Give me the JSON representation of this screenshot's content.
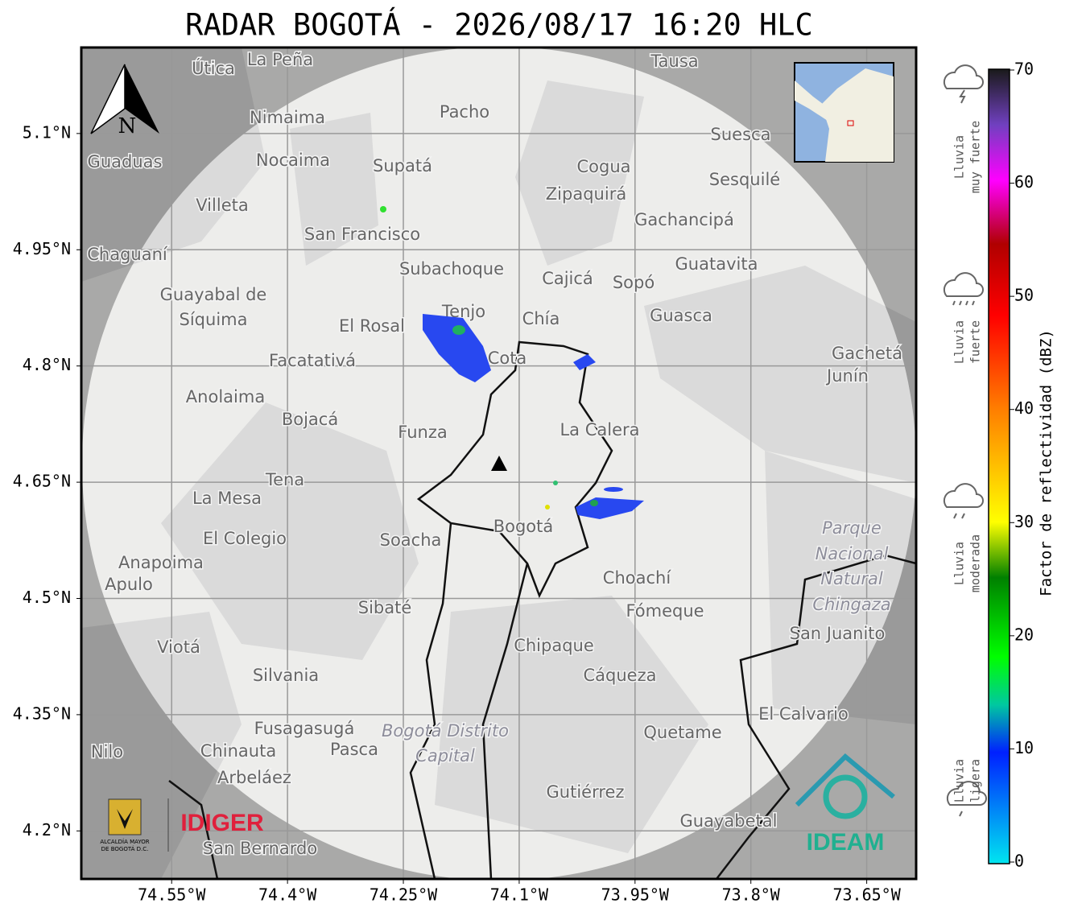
{
  "title": "RADAR BOGOTÁ - 2026/08/17 16:20 HLC",
  "map": {
    "xlim": [
      -74.667,
      -73.586
    ],
    "ylim": [
      4.138,
      5.211
    ],
    "grid": true,
    "xticks": [
      {
        "value": -74.55,
        "label": "74.55°W"
      },
      {
        "value": -74.4,
        "label": "74.4°W"
      },
      {
        "value": -74.25,
        "label": "74.25°W"
      },
      {
        "value": -74.1,
        "label": "74.1°W"
      },
      {
        "value": -73.95,
        "label": "73.95°W"
      },
      {
        "value": -73.8,
        "label": "73.8°W"
      },
      {
        "value": -73.65,
        "label": "73.65°W"
      }
    ],
    "yticks": [
      {
        "value": 5.1,
        "label": "5.1°N"
      },
      {
        "value": 4.95,
        "label": "4.95°N"
      },
      {
        "value": 4.8,
        "label": "4.8°N"
      },
      {
        "value": 4.65,
        "label": "4.65°N"
      },
      {
        "value": 4.5,
        "label": "4.5°N"
      },
      {
        "value": 4.35,
        "label": "4.35°N"
      },
      {
        "value": 4.2,
        "label": "4.2°N"
      }
    ],
    "north_label": "N",
    "places": [
      "La Peña",
      "Útica",
      "Tausa",
      "Pacho",
      "Nimaima",
      "Guaduas",
      "Nocaima",
      "Supatá",
      "Cogua",
      "Suesca",
      "Sesquilé",
      "Zipaquirá",
      "Villeta",
      "Gachancipá",
      "San Francisco",
      "Chaguaní",
      "Guatavita",
      "Subachoque",
      "Cajicá",
      "Sopó",
      "Guayabal de",
      "Síquima",
      "Tenjo",
      "Chía",
      "Guasca",
      "El Rosal",
      "Facatativá",
      "Gachetá",
      "Junín",
      "Cota",
      "Anolaima",
      "Bojacá",
      "Funza",
      "La Calera",
      "Tena",
      "La Mesa",
      "Soacha",
      "Bogotá",
      "El Colegio",
      "Anapoima",
      "Apulo",
      "Choachí",
      "Fómeque",
      "Sibaté",
      "San Juanito",
      "Chipaque",
      "Viotá",
      "Silvania",
      "Cáqueza",
      "El Calvario",
      "Quetame",
      "Fusagasugá",
      "Pasca",
      "Nilo",
      "Chinauta",
      "Arbeláez",
      "Gutiérrez",
      "Guayabetal",
      "San Bernardo"
    ],
    "italic_places": [
      "Parque",
      "Nacional",
      "Natural",
      "Chingaza",
      "Bogotá Distrito",
      "Capital"
    ]
  },
  "colorbar": {
    "label": "Factor de reflectividad (dBZ)",
    "clim": [
      0,
      70
    ],
    "ticks": [
      0,
      10,
      20,
      30,
      40,
      50,
      60,
      70
    ],
    "levels": [
      [
        "Lluvia",
        "ligera"
      ],
      [
        "Lluvia",
        "moderada"
      ],
      [
        "Lluvia",
        "fuerte"
      ],
      [
        "Lluvia",
        "muy fuerte"
      ]
    ]
  },
  "logos": {
    "alcaldia": [
      "ALCALDÍA MAYOR",
      "DE BOGOTÁ D.C."
    ],
    "idiger": "IDIGER",
    "ideam": "IDEAM"
  }
}
